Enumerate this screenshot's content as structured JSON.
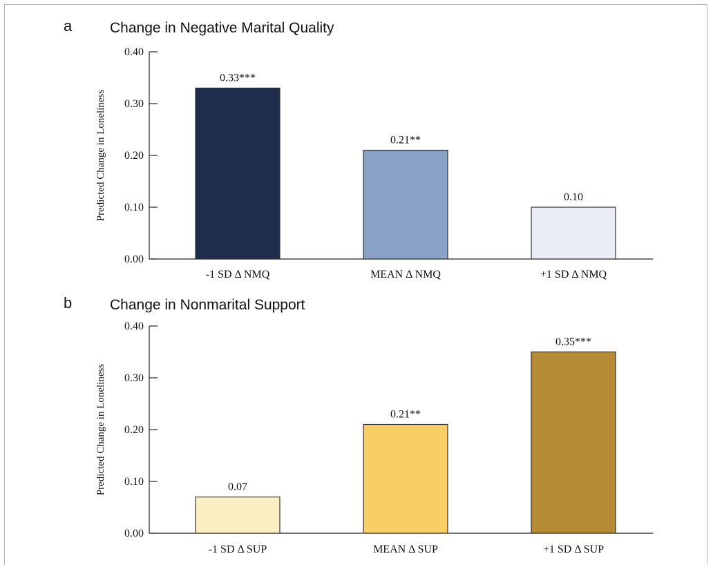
{
  "chart_data": [
    {
      "type": "bar",
      "panel": "a",
      "title": "Change in Negative Marital Quality",
      "ylabel": "Predicted Change in Loneliness",
      "xlabel": "",
      "ylim": [
        0,
        0.4
      ],
      "yticks": [
        "0.00",
        "0.10",
        "0.20",
        "0.30",
        "0.40"
      ],
      "categories": [
        "-1 SD Δ NMQ",
        "MEAN Δ NMQ",
        "+1 SD Δ NMQ"
      ],
      "values": [
        0.33,
        0.21,
        0.1
      ],
      "labels": [
        "0.33***",
        "0.21**",
        "0.10"
      ],
      "colors": [
        "#1f2d4d",
        "#8aa2c6",
        "#e9edf3"
      ],
      "grid": false
    },
    {
      "type": "bar",
      "panel": "b",
      "title": "Change in Nonmarital Support",
      "ylabel": "Predicted Change in Loneliness",
      "xlabel": "",
      "ylim": [
        0,
        0.4
      ],
      "yticks": [
        "0.00",
        "0.10",
        "0.20",
        "0.30",
        "0.40"
      ],
      "categories": [
        "-1 SD Δ SUP",
        "MEAN Δ SUP",
        "+1 SD Δ SUP"
      ],
      "values": [
        0.07,
        0.21,
        0.35
      ],
      "labels": [
        "0.07",
        "0.21**",
        "0.35***"
      ],
      "colors": [
        "#fdefc4",
        "#f8cf67",
        "#b58b36"
      ],
      "grid": false
    }
  ]
}
